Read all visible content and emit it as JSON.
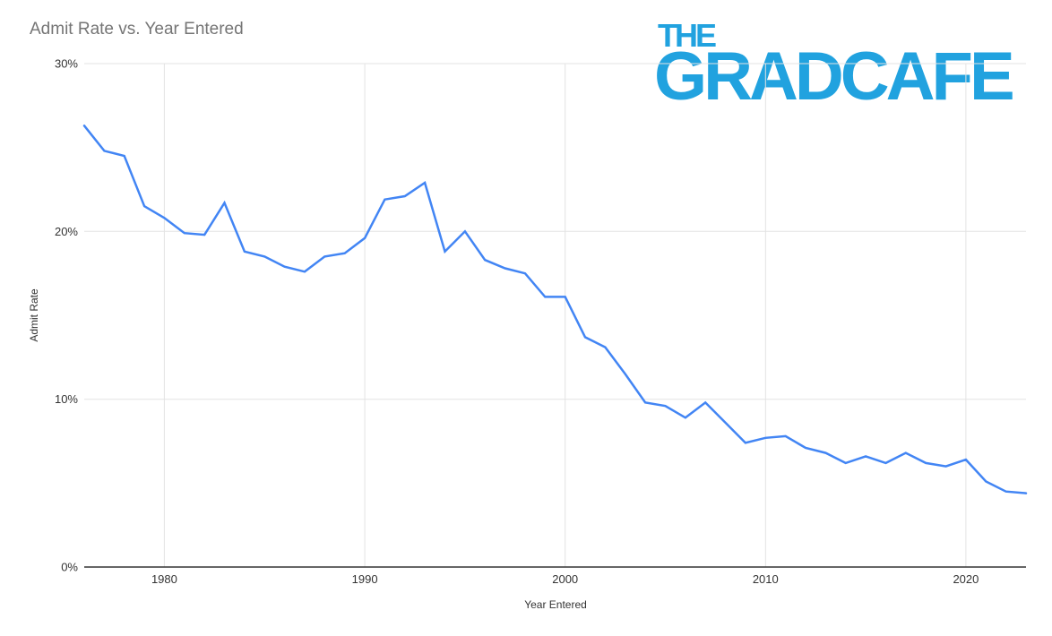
{
  "header": {
    "title": "Admit Rate vs. Year Entered"
  },
  "logo": {
    "line1": "THE",
    "line2": "GRADCAFE",
    "color": "#21A2DF"
  },
  "chart_data": {
    "type": "line",
    "title": "Admit Rate vs. Year Entered",
    "xlabel": "Year Entered",
    "ylabel": "Admit Rate",
    "series": [
      {
        "name": "Admit Rate",
        "x": [
          1976,
          1977,
          1978,
          1979,
          1980,
          1981,
          1982,
          1983,
          1984,
          1985,
          1986,
          1987,
          1988,
          1989,
          1990,
          1991,
          1992,
          1993,
          1994,
          1995,
          1996,
          1997,
          1998,
          1999,
          2000,
          2001,
          2002,
          2003,
          2004,
          2005,
          2006,
          2007,
          2008,
          2009,
          2010,
          2011,
          2012,
          2013,
          2014,
          2015,
          2016,
          2017,
          2018,
          2019,
          2020,
          2021,
          2022,
          2023
        ],
        "values": [
          26.3,
          24.8,
          24.5,
          21.5,
          20.8,
          19.9,
          19.8,
          21.7,
          18.8,
          18.5,
          17.9,
          17.6,
          18.5,
          18.7,
          19.6,
          21.9,
          22.1,
          22.9,
          18.8,
          20.0,
          18.3,
          17.8,
          17.5,
          16.1,
          16.1,
          13.7,
          13.1,
          11.5,
          9.8,
          9.6,
          8.9,
          9.8,
          8.6,
          7.4,
          7.7,
          7.8,
          7.1,
          6.8,
          6.2,
          6.6,
          6.2,
          6.8,
          6.2,
          6.0,
          6.4,
          5.1,
          4.5,
          4.4
        ]
      }
    ],
    "xlim": [
      1976,
      2023
    ],
    "ylim": [
      0,
      30
    ],
    "x_ticks": [
      1980,
      1990,
      2000,
      2010,
      2020
    ],
    "y_ticks": [
      0,
      10,
      20,
      30
    ],
    "y_tick_suffix": "%",
    "grid": true,
    "legend": false,
    "colors": {
      "line": "#4285F4",
      "grid": "#e3e3e3",
      "baseline": "#333333",
      "tick_label": "#333333",
      "title": "#757575",
      "axis_title": "#333333"
    }
  }
}
